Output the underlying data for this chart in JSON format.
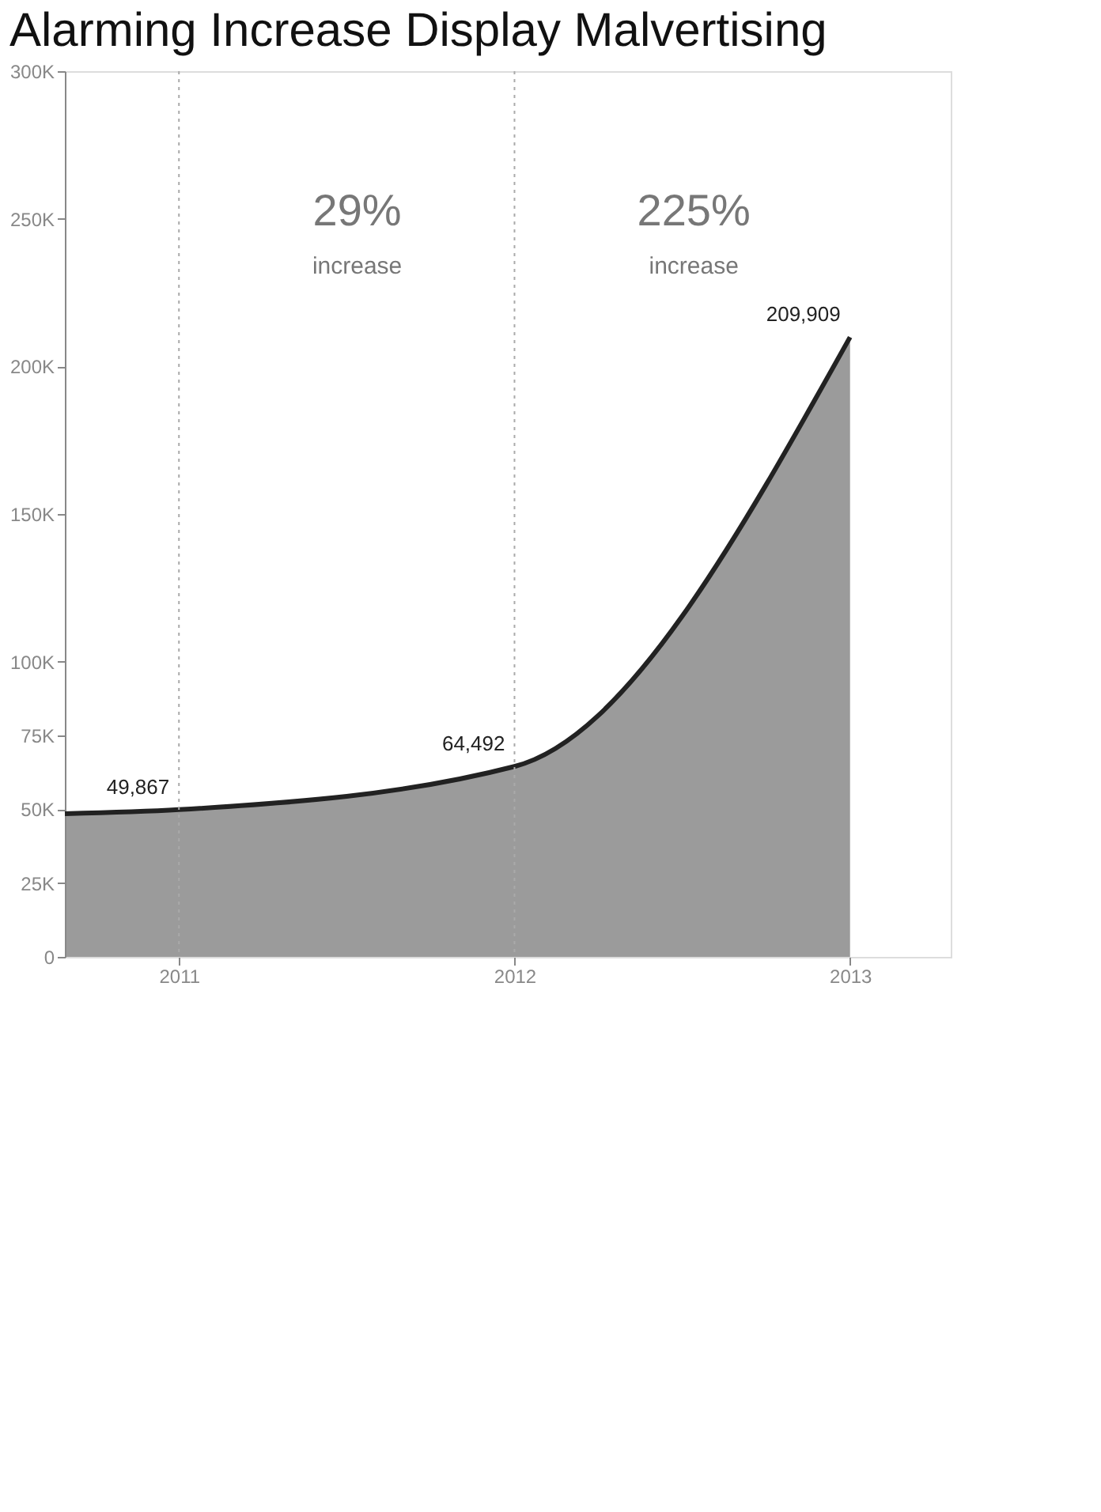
{
  "chart_data": {
    "type": "area",
    "title": "Alarming Increase Display Malvertising",
    "x": [
      2010.66,
      2011,
      2012,
      2013
    ],
    "series": [
      {
        "color": "#8a8a8a",
        "values": [
          48500,
          49867,
          64492,
          209909
        ],
        "value_labels": [
          null,
          "49,867",
          "64,492",
          "209,909"
        ]
      }
    ],
    "xlim": [
      2010.66,
      2013.3
    ],
    "xticks": [
      2011,
      2012,
      2013
    ],
    "ylim": [
      0,
      300000
    ],
    "yticks": [
      0,
      {
        "value": 25000,
        "label": "25K"
      },
      {
        "value": 50000,
        "label": "50K"
      },
      {
        "value": 75000,
        "label": "75K"
      },
      {
        "value": 100000,
        "label": "100K"
      },
      {
        "value": 150000,
        "label": "150K"
      },
      {
        "value": 200000,
        "label": "200K"
      },
      {
        "value": 250000,
        "label": "250K"
      },
      {
        "value": 300000,
        "label": "300K"
      }
    ],
    "ref_lines": [
      {
        "axis": "x",
        "value": 2011,
        "line_style": "dotted",
        "color": "#aaaaaa"
      },
      {
        "axis": "x",
        "value": 2012,
        "line_style": "dotted",
        "color": "#aaaaaa"
      }
    ],
    "annotations": [
      "29%",
      "increase",
      "225%",
      "increase"
    ],
    "grid": false
  }
}
